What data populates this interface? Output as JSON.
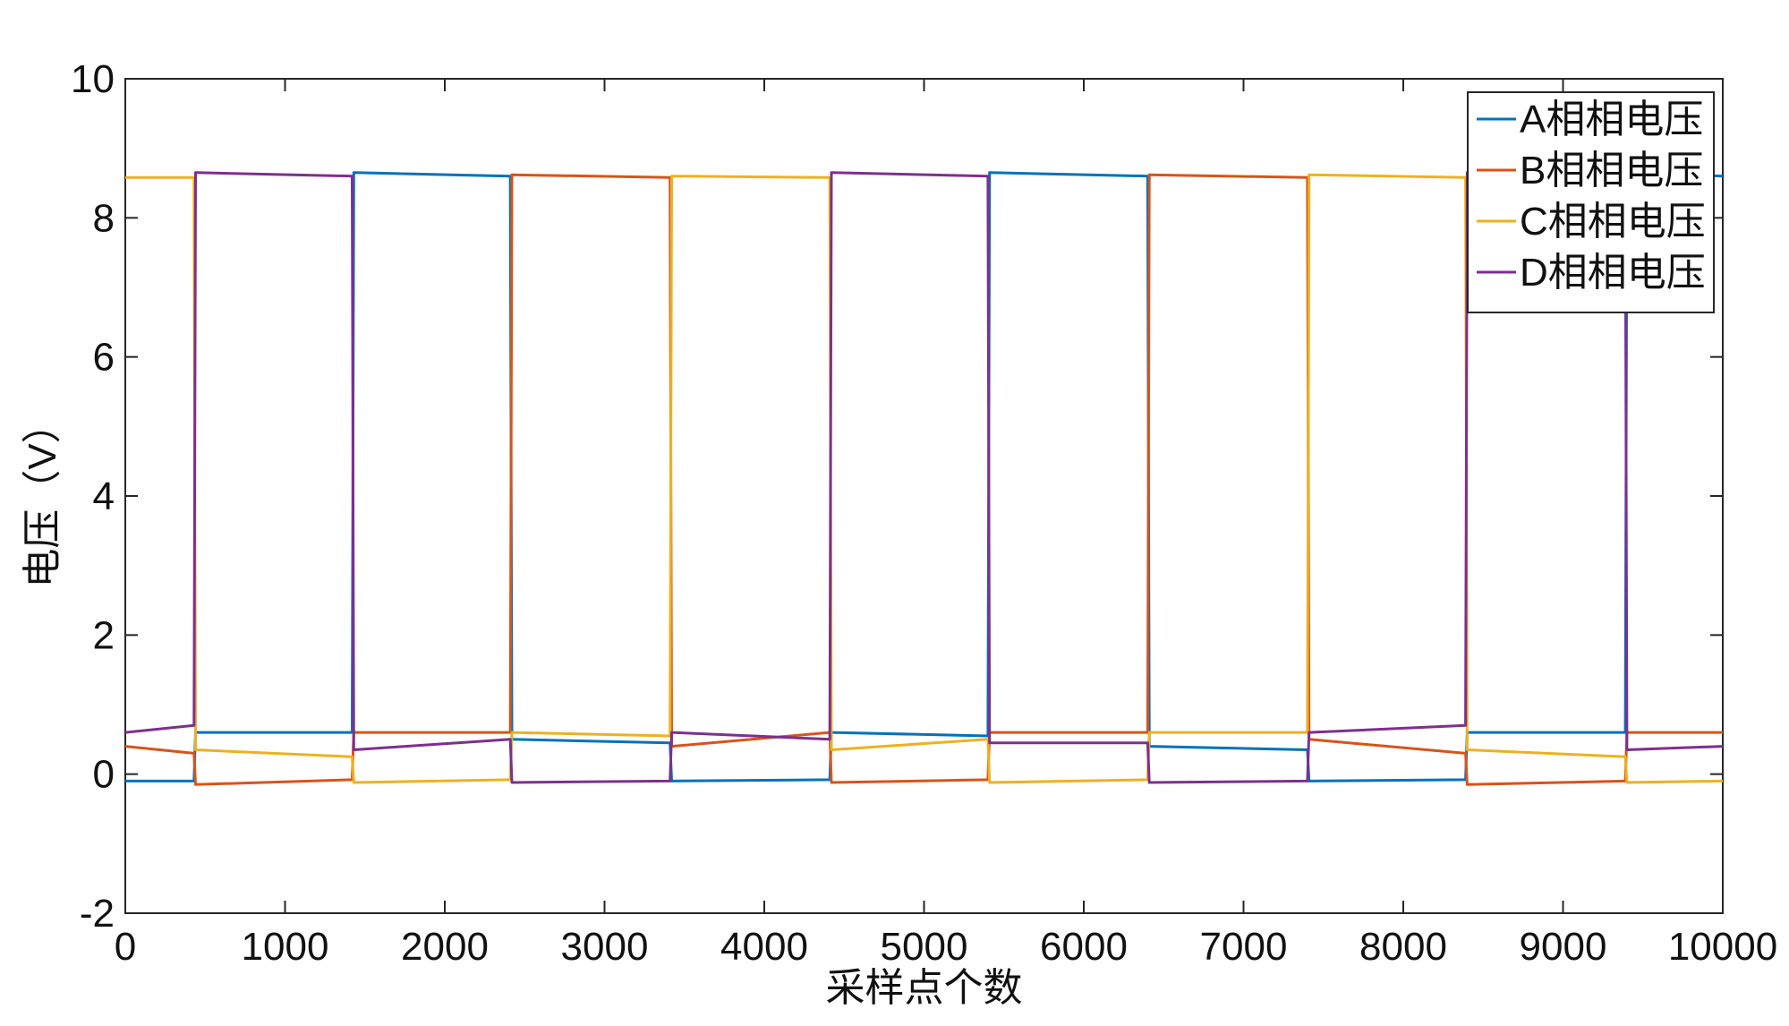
{
  "chart_data": {
    "type": "line",
    "title": "",
    "xlabel": "采样点个数",
    "ylabel": "电压（V）",
    "xlim": [
      0,
      10000
    ],
    "ylim": [
      -2,
      10
    ],
    "xticks": [
      0,
      1000,
      2000,
      3000,
      4000,
      5000,
      6000,
      7000,
      8000,
      9000,
      10000
    ],
    "yticks": [
      -2,
      0,
      2,
      4,
      6,
      8,
      10
    ],
    "grid": false,
    "legend_position": "top-right",
    "series": [
      {
        "name": "A相相电压",
        "color": "#0072BD",
        "x": [
          0,
          430,
          440,
          1420,
          1430,
          2410,
          2420,
          3410,
          3420,
          4410,
          4420,
          5400,
          5410,
          6400,
          6410,
          7400,
          7410,
          8390,
          8400,
          9390,
          9400,
          10000
        ],
        "y": [
          -0.1,
          -0.1,
          0.6,
          0.6,
          8.65,
          8.6,
          0.5,
          0.45,
          -0.1,
          -0.08,
          0.6,
          0.55,
          8.65,
          8.6,
          0.4,
          0.35,
          -0.1,
          -0.08,
          0.6,
          0.6,
          8.65,
          8.6
        ]
      },
      {
        "name": "B相相电压",
        "color": "#D95319",
        "x": [
          0,
          430,
          440,
          1420,
          1430,
          2410,
          2420,
          3410,
          3420,
          4410,
          4420,
          5400,
          5410,
          6400,
          6410,
          7400,
          7410,
          8390,
          8400,
          9390,
          9400,
          10000
        ],
        "y": [
          0.4,
          0.3,
          -0.15,
          -0.08,
          0.6,
          0.6,
          8.62,
          8.58,
          0.4,
          0.6,
          -0.12,
          -0.08,
          0.6,
          0.6,
          8.62,
          8.58,
          0.5,
          0.3,
          -0.15,
          -0.1,
          0.6,
          0.6
        ]
      },
      {
        "name": "C相相电压",
        "color": "#EDB120",
        "x": [
          0,
          430,
          440,
          1420,
          1430,
          2410,
          2420,
          3410,
          3420,
          4410,
          4420,
          5400,
          5410,
          6400,
          6410,
          7400,
          7410,
          8390,
          8400,
          9390,
          9400,
          10000
        ],
        "y": [
          8.58,
          8.58,
          0.35,
          0.25,
          -0.12,
          -0.08,
          0.6,
          0.55,
          8.6,
          8.58,
          0.35,
          0.5,
          -0.12,
          -0.08,
          0.6,
          0.6,
          8.62,
          8.58,
          0.35,
          0.25,
          -0.12,
          -0.1
        ]
      },
      {
        "name": "D相相电压",
        "color": "#7E2F8E",
        "x": [
          0,
          430,
          440,
          1420,
          1430,
          2410,
          2420,
          3410,
          3420,
          4410,
          4420,
          5400,
          5410,
          6400,
          6410,
          7400,
          7410,
          8390,
          8400,
          9390,
          9400,
          10000
        ],
        "y": [
          0.6,
          0.7,
          8.65,
          8.6,
          0.35,
          0.5,
          -0.12,
          -0.1,
          0.6,
          0.5,
          8.65,
          8.6,
          0.45,
          0.45,
          -0.12,
          -0.1,
          0.6,
          0.7,
          8.65,
          8.6,
          0.35,
          0.4
        ]
      }
    ]
  }
}
